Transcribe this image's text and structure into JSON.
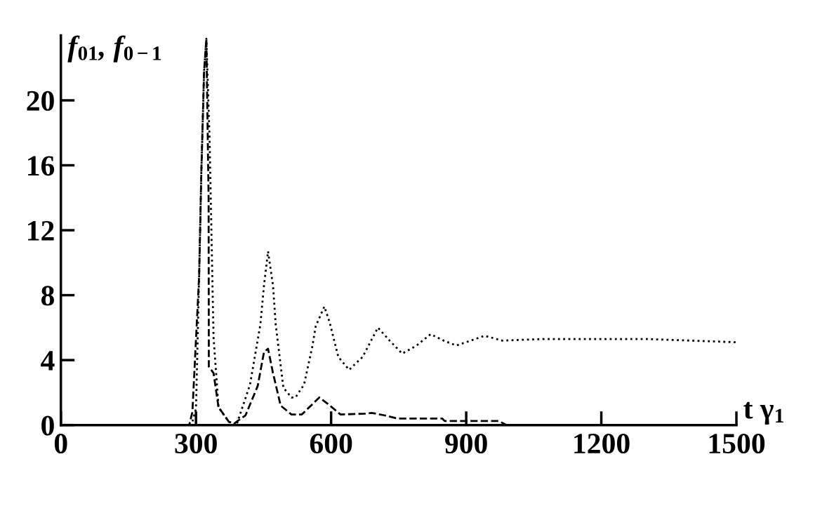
{
  "chart_data": {
    "type": "line",
    "ylabel": "f$_{01}$, f$_{0−1}$",
    "xlabel": "t γ$_{1}$",
    "xlim": [
      0,
      1500
    ],
    "ylim": [
      0,
      24
    ],
    "xticks": [
      0,
      300,
      600,
      900,
      1200,
      1500
    ],
    "yticks": [
      0,
      4,
      8,
      12,
      16,
      20
    ],
    "grid": false,
    "legend": false,
    "marker": "none",
    "series": [
      {
        "color": "#000000",
        "line_style": "dotted",
        "x": [
          0,
          290,
          300,
          307,
          312,
          318,
          323,
          330,
          339,
          350,
          373,
          390,
          420,
          443,
          451,
          460,
          471,
          477,
          494,
          512,
          521,
          540,
          558,
          566,
          585,
          597,
          616,
          640,
          670,
          704,
          730,
          758,
          790,
          821,
          850,
          878,
          910,
          941,
          980,
          1070,
          1170,
          1300,
          1400,
          1500
        ],
        "values": [
          0,
          0,
          1.0,
          9.2,
          15.7,
          21.8,
          23.8,
          17.8,
          5.4,
          1.1,
          0.2,
          0,
          2.5,
          6.2,
          8.6,
          10.7,
          8.6,
          6.2,
          2.3,
          1.7,
          1.7,
          2.5,
          4.8,
          6.1,
          7.3,
          6.3,
          4.2,
          3.4,
          4.2,
          6.0,
          5.2,
          4.4,
          4.9,
          5.6,
          5.2,
          4.9,
          5.2,
          5.5,
          5.2,
          5.3,
          5.3,
          5.3,
          5.2,
          5.1
        ]
      },
      {
        "color": "#000000",
        "line_style": "dashed",
        "x": [
          0,
          285,
          292,
          307,
          312,
          318,
          323,
          328,
          328.5,
          339,
          350,
          373,
          385,
          410,
          437,
          451,
          460,
          471,
          488,
          512,
          535,
          574,
          593,
          621,
          675,
          690,
          718,
          748,
          847,
          852,
          972,
          990,
          1500
        ],
        "values": [
          0,
          0,
          0.8,
          9.2,
          15.7,
          21.8,
          23.8,
          14,
          3.6,
          3.2,
          1.1,
          0.2,
          0.1,
          0.6,
          2.4,
          4.5,
          4.7,
          3.2,
          1.2,
          0.65,
          0.65,
          1.7,
          1.3,
          0.65,
          0.7,
          0.75,
          0.6,
          0.4,
          0.4,
          0.25,
          0.25,
          0,
          0
        ]
      }
    ]
  }
}
